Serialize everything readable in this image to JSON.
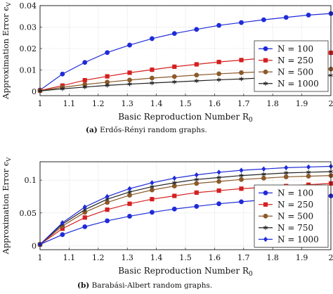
{
  "chart_data": [
    {
      "type": "line",
      "caption_tag": "(a)",
      "caption_text": "Erdős-Rényi random graphs.",
      "xlabel": "Basic Reproduction Number R",
      "xlabel_sub": "0",
      "ylabel": "Approximation Error ϵ",
      "ylabel_sub": "V",
      "xlim": [
        1,
        2
      ],
      "ylim": [
        -0.002,
        0.04
      ],
      "xticks": [
        "1",
        "1.1",
        "1.2",
        "1.3",
        "1.4",
        "1.5",
        "1.6",
        "1.7",
        "1.8",
        "1.9",
        "2"
      ],
      "yticks": [
        "0",
        "0.01",
        "0.02",
        "0.03",
        "0.04"
      ],
      "grid": true,
      "legend_position": "right",
      "x": [
        1.0,
        1.077,
        1.154,
        1.231,
        1.308,
        1.385,
        1.462,
        1.538,
        1.615,
        1.692,
        1.769,
        1.846,
        1.923,
        2.0
      ],
      "series": [
        {
          "name": "N = 100",
          "color": "#1f2bd8",
          "marker": "circle",
          "values": [
            0.0006,
            0.0081,
            0.0135,
            0.0181,
            0.0216,
            0.0246,
            0.027,
            0.0289,
            0.0308,
            0.0321,
            0.0334,
            0.0345,
            0.0356,
            0.0363
          ]
        },
        {
          "name": "N = 250",
          "color": "#d42020",
          "marker": "square",
          "values": [
            0.0004,
            0.0027,
            0.0052,
            0.007,
            0.0087,
            0.0101,
            0.0115,
            0.0126,
            0.0137,
            0.0146,
            0.0155,
            0.0162,
            0.017,
            0.018
          ]
        },
        {
          "name": "N = 500",
          "color": "#8b5a2b",
          "marker": "circle",
          "values": [
            0.0003,
            0.0019,
            0.0032,
            0.0043,
            0.0053,
            0.0062,
            0.0069,
            0.0076,
            0.0082,
            0.0087,
            0.0092,
            0.0097,
            0.0101,
            0.0104
          ]
        },
        {
          "name": "N = 1000",
          "color": "#222222",
          "marker": "star",
          "values": [
            0.0002,
            0.0012,
            0.002,
            0.0028,
            0.0034,
            0.0039,
            0.0044,
            0.0049,
            0.0054,
            0.0058,
            0.0063,
            0.0067,
            0.0071,
            0.0075
          ]
        }
      ]
    },
    {
      "type": "line",
      "caption_tag": "(b)",
      "caption_text": "Barabási-Albert random graphs.",
      "xlabel": "Basic Reproduction Number R",
      "xlabel_sub": "0",
      "ylabel": "Approximation Error ϵ",
      "ylabel_sub": "V",
      "xlim": [
        1,
        2
      ],
      "ylim": [
        -0.006,
        0.128
      ],
      "xticks": [
        "1",
        "1.1",
        "1.2",
        "1.3",
        "1.4",
        "1.5",
        "1.6",
        "1.7",
        "1.8",
        "1.9",
        "2"
      ],
      "yticks": [
        "0",
        "0.05",
        "0.1"
      ],
      "grid": true,
      "legend_position": "right",
      "x": [
        1.0,
        1.077,
        1.154,
        1.231,
        1.308,
        1.385,
        1.462,
        1.538,
        1.615,
        1.692,
        1.769,
        1.846,
        1.923,
        2.0
      ],
      "series": [
        {
          "name": "N = 100",
          "color": "#1f2bd8",
          "marker": "circle",
          "values": [
            0.002,
            0.017,
            0.029,
            0.038,
            0.045,
            0.051,
            0.056,
            0.06,
            0.064,
            0.067,
            0.07,
            0.072,
            0.074,
            0.076
          ]
        },
        {
          "name": "N = 250",
          "color": "#d42020",
          "marker": "square",
          "values": [
            0.002,
            0.026,
            0.043,
            0.055,
            0.064,
            0.071,
            0.076,
            0.081,
            0.084,
            0.087,
            0.089,
            0.091,
            0.093,
            0.095
          ]
        },
        {
          "name": "N = 500",
          "color": "#8b5a2b",
          "marker": "circle",
          "values": [
            0.002,
            0.03,
            0.051,
            0.066,
            0.077,
            0.085,
            0.091,
            0.095,
            0.098,
            0.101,
            0.103,
            0.105,
            0.106,
            0.107
          ]
        },
        {
          "name": "N = 750",
          "color": "#222222",
          "marker": "star",
          "values": [
            0.002,
            0.033,
            0.055,
            0.071,
            0.082,
            0.09,
            0.096,
            0.101,
            0.104,
            0.107,
            0.109,
            0.111,
            0.112,
            0.113
          ]
        },
        {
          "name": "N = 1000",
          "color": "#1f2bd8",
          "marker": "diamond",
          "values": [
            0.002,
            0.035,
            0.059,
            0.075,
            0.087,
            0.096,
            0.103,
            0.108,
            0.112,
            0.115,
            0.117,
            0.119,
            0.12,
            0.121
          ]
        }
      ]
    }
  ]
}
